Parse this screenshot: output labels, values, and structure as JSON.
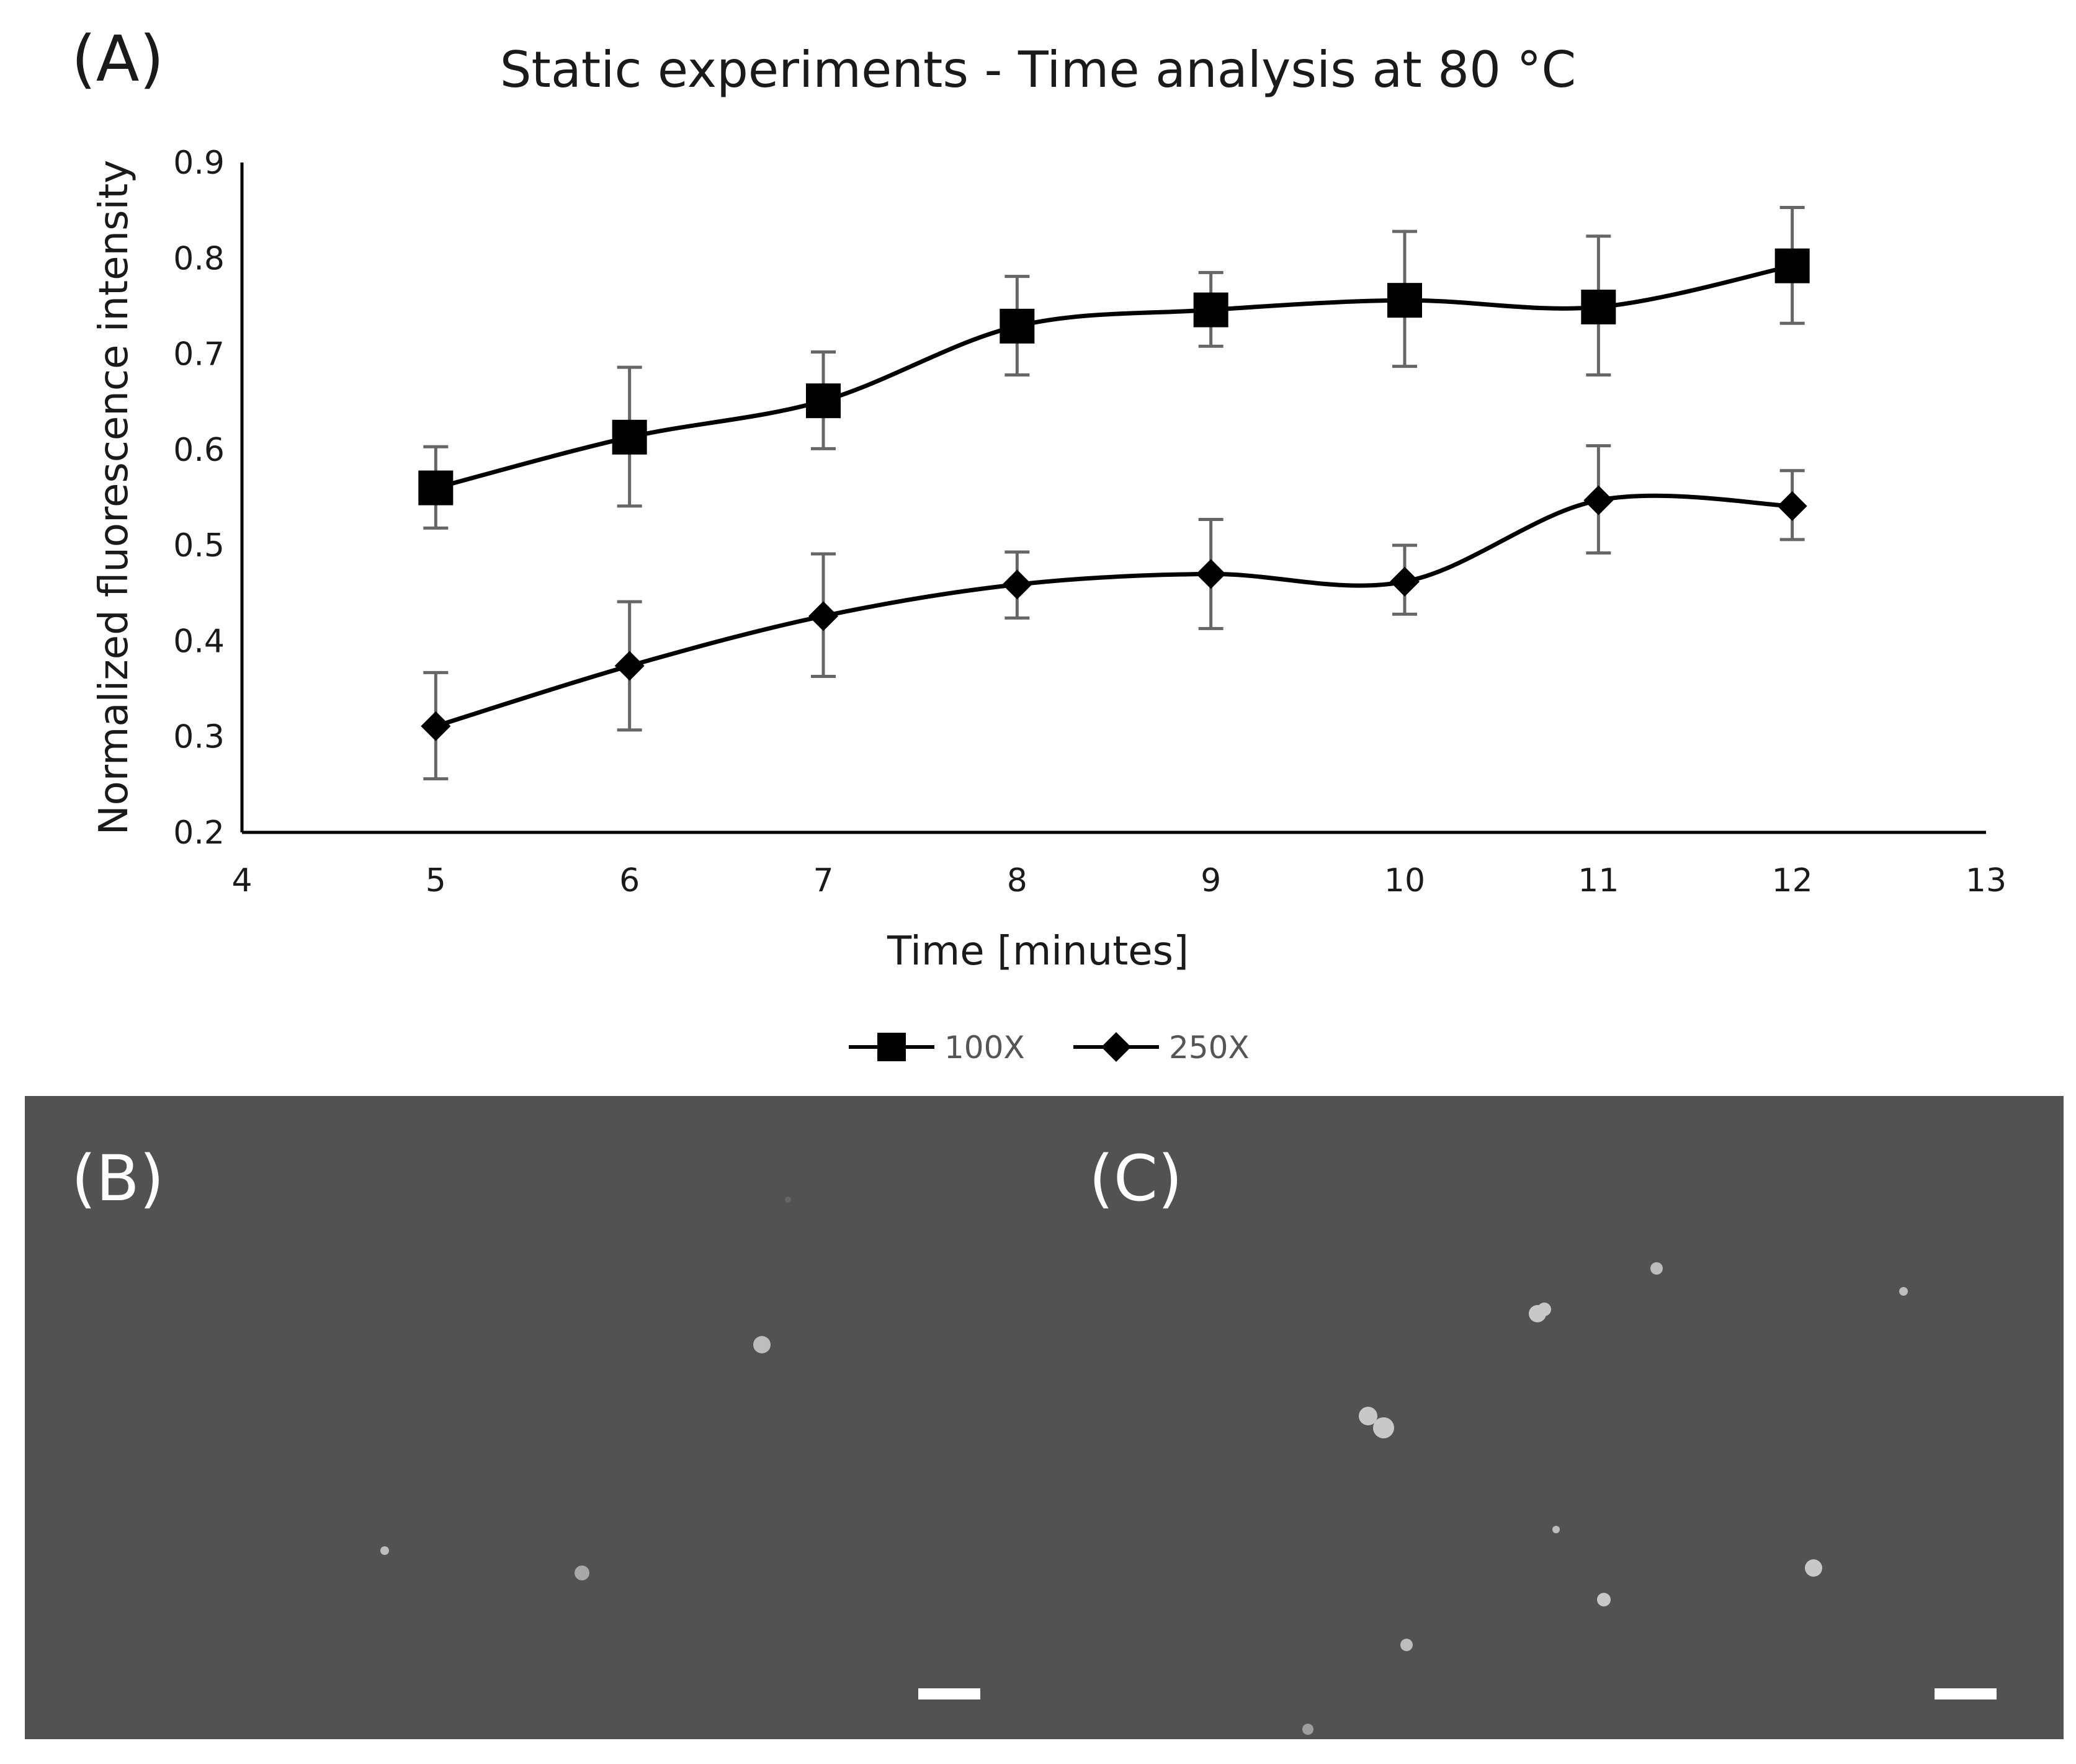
{
  "panels": {
    "a_label": "(A)",
    "b_label": "(B)",
    "c_label": "(C)"
  },
  "chart_data": {
    "type": "line",
    "title": "Static experiments - Time analysis at 80 °C",
    "xlabel": "Time [minutes]",
    "ylabel": "Normalized fluorescence intensity",
    "xlim": [
      4,
      13
    ],
    "ylim": [
      0.2,
      0.9
    ],
    "xticks": [
      4,
      5,
      6,
      7,
      8,
      9,
      10,
      11,
      12,
      13
    ],
    "yticks": [
      0.2,
      0.3,
      0.4,
      0.5,
      0.6,
      0.7,
      0.8,
      0.9
    ],
    "grid": false,
    "legend_position": "bottom-center",
    "x": [
      5,
      6,
      7,
      8,
      9,
      10,
      11,
      12
    ],
    "series": [
      {
        "name": "100X",
        "marker": "square",
        "values": [
          0.56,
          0.613,
          0.651,
          0.729,
          0.746,
          0.756,
          0.749,
          0.792
        ],
        "err_low": [
          0.518,
          0.541,
          0.601,
          0.678,
          0.708,
          0.687,
          0.678,
          0.732
        ],
        "err_high": [
          0.603,
          0.686,
          0.702,
          0.781,
          0.785,
          0.828,
          0.823,
          0.853
        ]
      },
      {
        "name": "250X",
        "marker": "diamond",
        "values": [
          0.311,
          0.374,
          0.426,
          0.459,
          0.47,
          0.462,
          0.547,
          0.541
        ],
        "err_low": [
          0.256,
          0.307,
          0.363,
          0.424,
          0.413,
          0.428,
          0.492,
          0.506
        ],
        "err_high": [
          0.367,
          0.441,
          0.491,
          0.493,
          0.527,
          0.5,
          0.604,
          0.578
        ]
      }
    ],
    "colors": {
      "line": "#000000",
      "error_bar": "#666666",
      "axis": "#000000"
    }
  },
  "micrographs": {
    "background": "#525252",
    "particle_color": "#bdbdbd",
    "scale_bar_color": "#ffffff"
  }
}
